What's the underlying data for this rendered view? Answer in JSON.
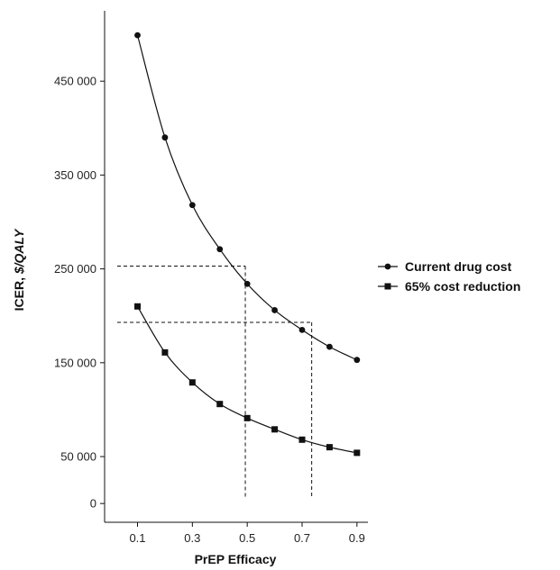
{
  "chart_data": {
    "type": "line",
    "xlabel": "PrEP Efficacy",
    "ylabel_plain": "ICER, ",
    "ylabel_italic": "$/QALY",
    "x_ticks": [
      "0.1",
      "0.3",
      "0.5",
      "0.7",
      "0.9"
    ],
    "y_ticks": [
      "0",
      "50 000",
      "150 000",
      "250 000",
      "350 000",
      "450 000"
    ],
    "x_tick_values": [
      0.1,
      0.3,
      0.5,
      0.7,
      0.9
    ],
    "y_tick_values": [
      0,
      50000,
      150000,
      250000,
      350000,
      450000
    ],
    "xlim": [
      -0.02,
      0.94
    ],
    "ylim": [
      -20000,
      525000
    ],
    "series": [
      {
        "name": "Current drug cost",
        "marker": "circle",
        "x": [
          0.1,
          0.2,
          0.3,
          0.4,
          0.5,
          0.6,
          0.7,
          0.8,
          0.9
        ],
        "y": [
          499000,
          390000,
          318000,
          271000,
          234000,
          206000,
          185000,
          167000,
          153000
        ]
      },
      {
        "name": "65% cost reduction",
        "marker": "square",
        "x": [
          0.1,
          0.2,
          0.3,
          0.4,
          0.5,
          0.6,
          0.7,
          0.8,
          0.9
        ],
        "y": [
          210000,
          161000,
          129000,
          106000,
          91000,
          79000,
          68000,
          60000,
          54000
        ]
      }
    ],
    "reference_lines": [
      {
        "y": 253000,
        "x": 0.493
      },
      {
        "y": 193000,
        "x": 0.735
      }
    ],
    "legend_position": "right",
    "grid": false,
    "colors": {
      "line": "#111111",
      "axis": "#111111"
    }
  }
}
